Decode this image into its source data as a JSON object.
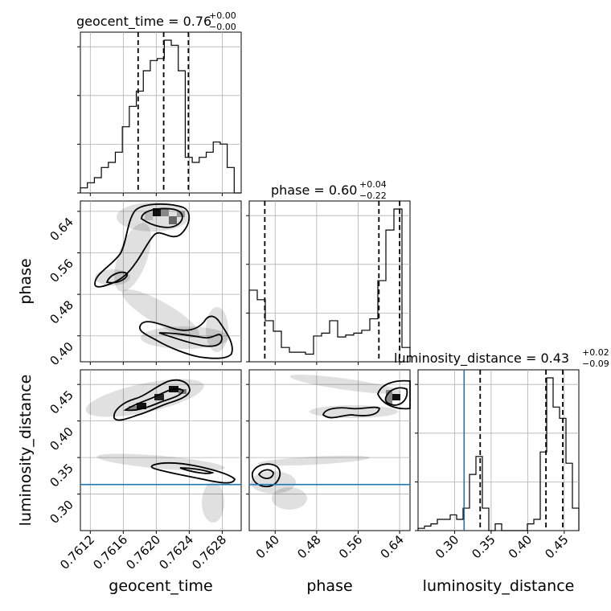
{
  "chart_data": {
    "type": "corner",
    "parameters": [
      "geocent_time",
      "phase",
      "luminosity_distance"
    ],
    "titles": [
      {
        "name": "geocent_time",
        "value": "0.76",
        "plus": "+0.00",
        "minus": "−0.00"
      },
      {
        "name": "phase",
        "value": "0.60",
        "plus": "+0.04",
        "minus": "−0.22"
      },
      {
        "name": "luminosity_distance",
        "value": "0.43",
        "plus": "+0.02",
        "minus": "−0.09"
      }
    ],
    "ranges": {
      "geocent_time": [
        0.76108,
        0.76303
      ],
      "phase": [
        0.35,
        0.66
      ],
      "luminosity_distance": [
        0.25,
        0.47
      ]
    },
    "ticks": {
      "geocent_time": [
        "0.7612",
        "0.7616",
        "0.7620",
        "0.7624",
        "0.7628"
      ],
      "phase": [
        "0.40",
        "0.48",
        "0.56",
        "0.64"
      ],
      "luminosity_distance": [
        "0.30",
        "0.35",
        "0.40",
        "0.45"
      ]
    },
    "tick_values": {
      "geocent_time": [
        0.7612,
        0.7616,
        0.762,
        0.7624,
        0.7628
      ],
      "phase": [
        0.4,
        0.48,
        0.56,
        0.64
      ],
      "luminosity_distance": [
        0.3,
        0.35,
        0.4,
        0.45
      ]
    },
    "quantiles": {
      "geocent_time": [
        0.76178,
        0.76209,
        0.76239
      ],
      "phase": [
        0.38,
        0.6,
        0.64
      ],
      "luminosity_distance": [
        0.335,
        0.425,
        0.448
      ]
    },
    "truths": {
      "phase": null,
      "luminosity_distance": 0.313
    },
    "histograms": {
      "geocent_time": [
        0.5,
        1,
        1.5,
        2.5,
        3,
        4,
        6.5,
        8.5,
        10,
        12,
        13,
        13.2,
        15,
        14.5,
        12,
        3.5,
        3,
        3.5,
        4,
        5,
        4.8,
        2.5,
        0
      ],
      "phase": [
        7.5,
        6.5,
        4.3,
        3.2,
        1.5,
        1,
        1,
        0.8,
        2.7,
        3,
        4.3,
        2.6,
        2.8,
        3,
        3.3,
        4.5,
        8.5,
        13.8,
        16,
        1.5
      ],
      "luminosity_distance": [
        0.1,
        0.2,
        0.3,
        0.5,
        0.5,
        0.7,
        0.5,
        1,
        2.5,
        3.3,
        1,
        0,
        0.3,
        0,
        0,
        0,
        0,
        0.3,
        0.5,
        3.5,
        6.8,
        5.5,
        5,
        3,
        1
      ]
    },
    "grid": true,
    "xlabels": [
      "geocent_time",
      "phase",
      "luminosity_distance"
    ],
    "ylabels": [
      "",
      "phase",
      "luminosity_distance"
    ]
  }
}
